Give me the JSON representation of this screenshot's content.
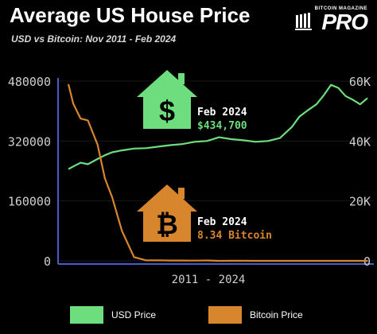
{
  "header": {
    "title": "Average US House Price",
    "subtitle": "USD vs Bitcoin: Nov 2011 - Feb 2024",
    "brand_small": "BITCOIN MAGAZINE",
    "brand_big": "PRO"
  },
  "annotations": {
    "usd": {
      "date": "Feb 2024",
      "value": "$434,700",
      "icon": "house-dollar-icon"
    },
    "btc": {
      "date": "Feb 2024",
      "value": "8.34 Bitcoin",
      "icon": "house-bitcoin-icon"
    }
  },
  "colors": {
    "usd": "#6ddd7d",
    "btc": "#d8862e",
    "axis": "#4a5ac8",
    "text": "#cfcfcf"
  },
  "chart_data": {
    "type": "line",
    "xlabel": "2011 - 2024",
    "y_left": {
      "ylim": [
        0,
        480000
      ],
      "ticks": [
        "0",
        "160000",
        "320000",
        "480000"
      ],
      "tick_values": [
        0,
        160000,
        320000,
        480000
      ]
    },
    "y_right": {
      "ylim": [
        0,
        60000
      ],
      "ticks": [
        "0",
        "20K",
        "40K",
        "60K"
      ],
      "tick_values": [
        0,
        20000,
        40000,
        60000
      ]
    },
    "x": [
      2011.8,
      2012.0,
      2012.3,
      2012.6,
      2013.0,
      2013.3,
      2013.6,
      2014.0,
      2014.5,
      2015.0,
      2015.5,
      2016.0,
      2016.5,
      2017.0,
      2017.5,
      2018.0,
      2018.5,
      2019.0,
      2019.5,
      2020.0,
      2020.5,
      2021.0,
      2021.3,
      2021.6,
      2022.0,
      2022.3,
      2022.6,
      2022.9,
      2023.2,
      2023.5,
      2023.8,
      2024.1
    ],
    "series": [
      {
        "name": "USD Price",
        "axis": "left",
        "values": [
          245000,
          252000,
          262000,
          258000,
          272000,
          282000,
          290000,
          295000,
          300000,
          301000,
          305000,
          309000,
          312000,
          318000,
          320000,
          330000,
          325000,
          322000,
          318000,
          320000,
          328000,
          358000,
          385000,
          400000,
          418000,
          442000,
          470000,
          462000,
          440000,
          430000,
          418000,
          434700
        ]
      },
      {
        "name": "Bitcoin Price",
        "axis": "left",
        "values": [
          472000,
          420000,
          380000,
          375000,
          310000,
          220000,
          170000,
          80000,
          10000,
          1200,
          1500,
          800,
          900,
          600,
          1000,
          50,
          150,
          120,
          90,
          80,
          40,
          8,
          8,
          7,
          8,
          12,
          20,
          18,
          15,
          14,
          11,
          8.34
        ]
      }
    ],
    "legend": [
      "USD Price",
      "Bitcoin Price"
    ],
    "legend_position": "bottom"
  }
}
